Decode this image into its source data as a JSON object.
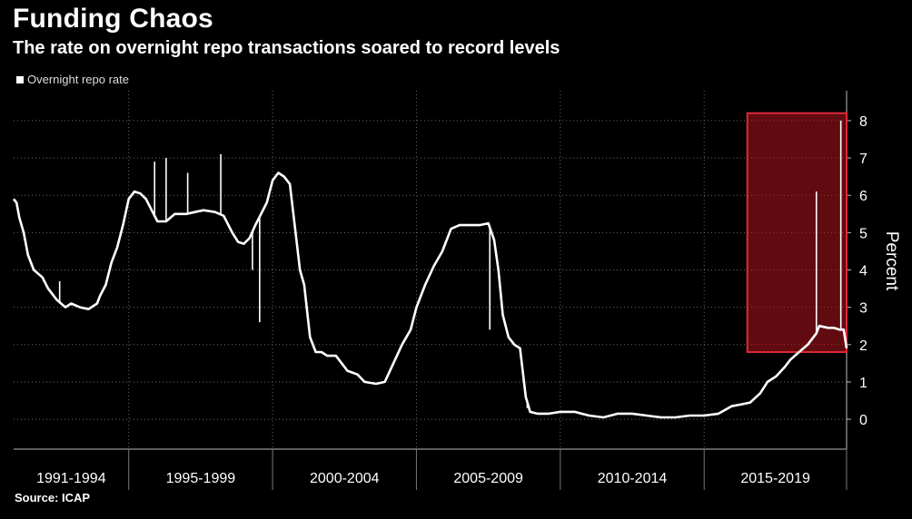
{
  "title": "Funding Chaos",
  "subtitle": "The rate on overnight repo transactions soared to record levels",
  "legend": {
    "label": "Overnight repo rate"
  },
  "source": "Source: ICAP",
  "colors": {
    "background": "#000000",
    "line": "#ffffff",
    "highlight": "#b0141e",
    "grid": "#6a6a6a"
  },
  "chart_data": {
    "type": "line",
    "title": "Funding Chaos",
    "subtitle": "The rate on overnight repo transactions soared to record levels",
    "xlabel": "",
    "ylabel": "Percent",
    "ylim": [
      -0.8,
      8.8
    ],
    "xlim": [
      1991.0,
      2019.95
    ],
    "yticks": [
      0,
      1,
      2,
      3,
      4,
      5,
      6,
      7,
      8
    ],
    "x_period_labels": [
      "1991-1994",
      "1995-1999",
      "2000-2004",
      "2005-2009",
      "2010-2014",
      "2015-2019"
    ],
    "x_period_separators": [
      1995,
      2000,
      2005,
      2010,
      2015,
      2019.95
    ],
    "grid": true,
    "legend_position": "top-left",
    "highlight": {
      "x": [
        2016.5,
        2019.95
      ],
      "y": [
        1.8,
        8.2
      ]
    },
    "series": [
      {
        "name": "Overnight repo rate",
        "x": [
          1991.0,
          1991.1,
          1991.2,
          1991.35,
          1991.5,
          1991.7,
          1992.0,
          1992.2,
          1992.5,
          1992.8,
          1993.0,
          1993.3,
          1993.6,
          1993.9,
          1994.0,
          1994.2,
          1994.4,
          1994.6,
          1994.8,
          1995.0,
          1995.2,
          1995.4,
          1995.6,
          1995.8,
          1996.0,
          1996.3,
          1996.6,
          1997.0,
          1997.3,
          1997.6,
          1998.0,
          1998.3,
          1998.6,
          1998.8,
          1999.0,
          1999.2,
          1999.4,
          1999.6,
          1999.8,
          2000.0,
          2000.2,
          2000.4,
          2000.6,
          2000.8,
          2000.95,
          2001.1,
          2001.3,
          2001.5,
          2001.7,
          2001.9,
          2002.2,
          2002.6,
          2002.95,
          2003.2,
          2003.6,
          2003.9,
          2004.2,
          2004.5,
          2004.8,
          2005.0,
          2005.3,
          2005.6,
          2005.9,
          2006.2,
          2006.5,
          2006.8,
          2007.2,
          2007.5,
          2007.7,
          2007.85,
          2008.0,
          2008.2,
          2008.4,
          2008.6,
          2008.8,
          2008.95,
          2009.2,
          2009.6,
          2010.0,
          2010.5,
          2011.0,
          2011.5,
          2012.0,
          2012.5,
          2013.0,
          2013.5,
          2014.0,
          2014.5,
          2015.0,
          2015.5,
          2015.95,
          2016.3,
          2016.6,
          2016.95,
          2017.2,
          2017.5,
          2017.8,
          2018.0,
          2018.3,
          2018.6,
          2018.9,
          2019.0,
          2019.3,
          2019.5,
          2019.7,
          2019.85,
          2019.95
        ],
        "values": [
          5.9,
          5.8,
          5.4,
          5.0,
          4.4,
          4.0,
          3.8,
          3.5,
          3.2,
          3.0,
          3.1,
          3.0,
          2.95,
          3.1,
          3.3,
          3.6,
          4.2,
          4.6,
          5.2,
          5.9,
          6.1,
          6.05,
          5.9,
          5.6,
          5.3,
          5.3,
          5.5,
          5.5,
          5.55,
          5.6,
          5.55,
          5.45,
          5.0,
          4.75,
          4.7,
          4.85,
          5.2,
          5.5,
          5.8,
          6.4,
          6.6,
          6.5,
          6.3,
          5.0,
          4.0,
          3.6,
          2.2,
          1.8,
          1.8,
          1.7,
          1.7,
          1.3,
          1.2,
          1.0,
          0.95,
          1.0,
          1.5,
          2.0,
          2.4,
          3.0,
          3.6,
          4.1,
          4.5,
          5.1,
          5.2,
          5.2,
          5.2,
          5.25,
          4.8,
          4.0,
          2.8,
          2.2,
          2.0,
          1.9,
          0.6,
          0.2,
          0.15,
          0.15,
          0.2,
          0.2,
          0.1,
          0.05,
          0.15,
          0.15,
          0.1,
          0.05,
          0.05,
          0.1,
          0.1,
          0.15,
          0.35,
          0.4,
          0.45,
          0.7,
          1.0,
          1.15,
          1.4,
          1.6,
          1.8,
          2.0,
          2.3,
          2.5,
          2.45,
          2.45,
          2.4,
          2.4,
          1.9
        ]
      }
    ],
    "spikes": [
      {
        "x": 1992.6,
        "value": 3.7
      },
      {
        "x": 1995.9,
        "value": 6.9
      },
      {
        "x": 1996.3,
        "value": 7.0
      },
      {
        "x": 1997.05,
        "value": 6.6
      },
      {
        "x": 1998.2,
        "value": 7.1
      },
      {
        "x": 1999.3,
        "value": 4.0
      },
      {
        "x": 1999.55,
        "value": 2.6
      },
      {
        "x": 2007.55,
        "value": 2.4
      },
      {
        "x": 2008.85,
        "value": 0.3
      },
      {
        "x": 2018.9,
        "value": 6.1
      },
      {
        "x": 2019.75,
        "value": 8.0
      }
    ]
  }
}
